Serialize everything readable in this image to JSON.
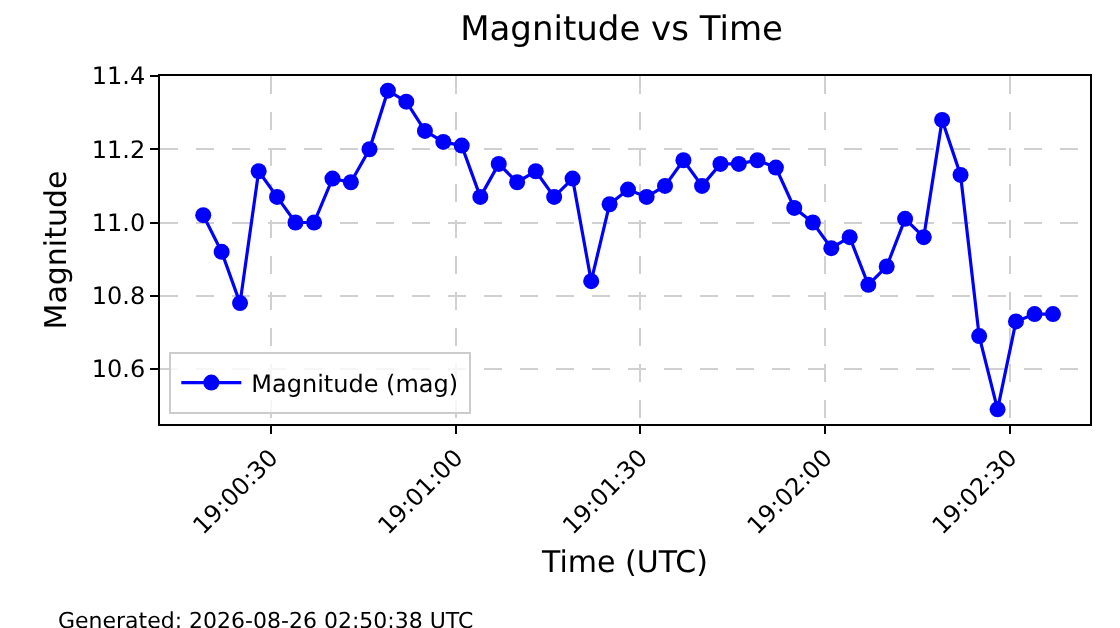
{
  "chart_data": {
    "type": "line",
    "title": "Magnitude vs Time",
    "xlabel": "Time (UTC)",
    "ylabel": "Magnitude",
    "x": [
      19.00528,
      19.00611,
      19.00694,
      19.00778,
      19.00861,
      19.00944,
      19.01028,
      19.01111,
      19.01194,
      19.01278,
      19.01361,
      19.01444,
      19.01528,
      19.01611,
      19.01694,
      19.01778,
      19.01861,
      19.01944,
      19.02028,
      19.02111,
      19.02194,
      19.02278,
      19.02361,
      19.02444,
      19.02528,
      19.02611,
      19.02694,
      19.02778,
      19.02861,
      19.02944,
      19.03028,
      19.03111,
      19.03194,
      19.03278,
      19.03361,
      19.03444,
      19.03528,
      19.03611,
      19.03694,
      19.03778,
      19.03861,
      19.03944,
      19.04028,
      19.04111,
      19.04194,
      19.04278,
      19.04361
    ],
    "series": [
      {
        "name": "Magnitude (mag)",
        "color": "#0000ff",
        "values": [
          11.02,
          10.92,
          10.78,
          11.14,
          11.07,
          11.0,
          11.0,
          11.12,
          11.11,
          11.2,
          11.36,
          11.33,
          11.25,
          11.22,
          11.21,
          11.07,
          11.16,
          11.11,
          11.14,
          11.07,
          11.12,
          10.84,
          11.05,
          11.09,
          11.07,
          11.1,
          11.17,
          11.1,
          11.16,
          11.16,
          11.17,
          11.15,
          11.04,
          11.0,
          10.93,
          10.96,
          10.83,
          10.88,
          11.01,
          10.96,
          11.28,
          11.13,
          10.69,
          10.49,
          10.73,
          10.75,
          10.75
        ]
      }
    ],
    "xlim": [
      19.00333,
      19.04528
    ],
    "xticks": [
      {
        "value": 19.00833,
        "label": "19:00:30"
      },
      {
        "value": 19.01667,
        "label": "19:01:00"
      },
      {
        "value": 19.025,
        "label": "19:01:30"
      },
      {
        "value": 19.03333,
        "label": "19:02:00"
      },
      {
        "value": 19.04167,
        "label": "19:02:30"
      }
    ],
    "ylim": [
      10.45,
      11.4
    ],
    "yticks": [
      {
        "value": 10.6,
        "label": "10.6"
      },
      {
        "value": 10.8,
        "label": "10.8"
      },
      {
        "value": 11.0,
        "label": "11.0"
      },
      {
        "value": 11.2,
        "label": "11.2"
      },
      {
        "value": 11.4,
        "label": "11.4"
      }
    ],
    "grid": true,
    "legend": "bottom left",
    "marker": "circle",
    "line_style": "solid",
    "annotations": [
      "Generated: 2026-08-26 02:50:38 UTC"
    ]
  }
}
